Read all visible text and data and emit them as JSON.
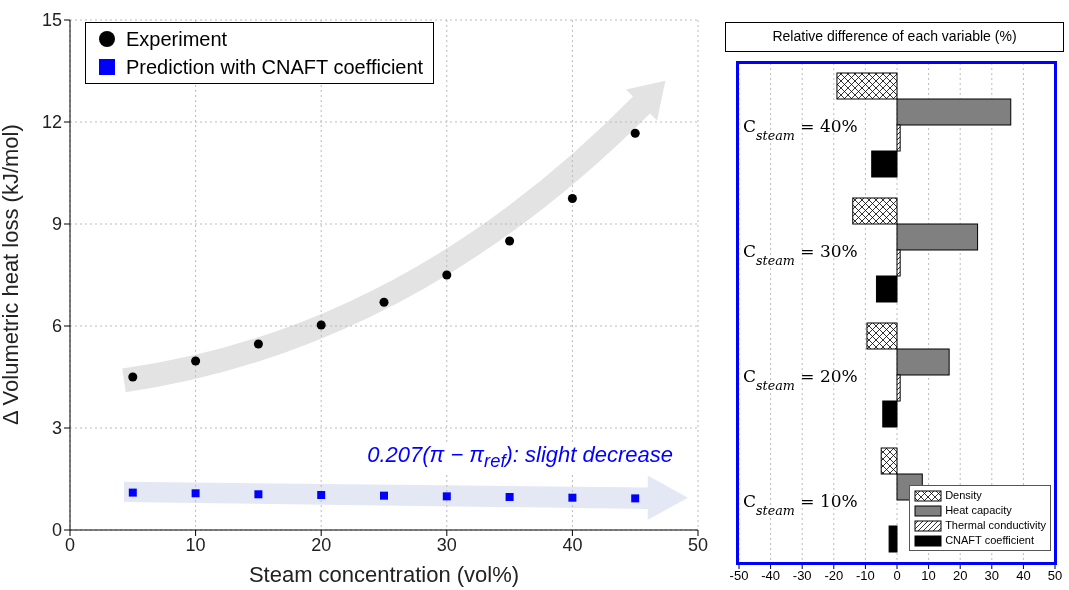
{
  "chart_data": [
    {
      "type": "scatter",
      "xlabel": "Steam concentration (vol%)",
      "ylabel": "Δ Volumetric heat loss (kJ/mol)",
      "x": [
        5,
        10,
        15,
        20,
        25,
        30,
        35,
        40,
        45
      ],
      "series": [
        {
          "name": "Experiment",
          "color": "#000000",
          "marker": "circle",
          "values": [
            4.5,
            4.97,
            5.47,
            6.03,
            6.7,
            7.5,
            8.5,
            9.75,
            11.67
          ]
        },
        {
          "name": "Prediction with CNAFT coefficient",
          "color": "#0000ff",
          "marker": "square",
          "values": [
            1.1,
            1.08,
            1.05,
            1.03,
            1.01,
            0.99,
            0.97,
            0.95,
            0.93
          ]
        }
      ],
      "xlim": [
        0,
        50
      ],
      "xticks": [
        0,
        10,
        20,
        30,
        40,
        50
      ],
      "ylim": [
        0,
        15
      ],
      "yticks": [
        0,
        3,
        6,
        9,
        12,
        15
      ],
      "annotations": [
        "0.207(π − π$_{ref}$): slight decrease"
      ],
      "grid": true,
      "legend": "top left"
    },
    {
      "type": "bar",
      "orientation": "horizontal",
      "title": "Relative difference of each variable (%)",
      "categories": [
        "C$_{steam}$ = 40%",
        "C$_{steam}$ = 30%",
        "C$_{steam}$ = 20%",
        "C$_{steam}$ = 10%"
      ],
      "series": [
        {
          "name": "Density",
          "color": "#ffffff",
          "values": [
            -19,
            -14,
            -9.5,
            -5
          ]
        },
        {
          "name": "Heat capacity",
          "color": "#808080",
          "values": [
            36,
            25.5,
            16.5,
            8
          ]
        },
        {
          "name": "Thermal conductivity",
          "color": "#ffffff",
          "values": [
            1,
            1,
            1,
            0
          ]
        },
        {
          "name": "CNAFT coefficient",
          "color": "#000000",
          "values": [
            -8,
            -6.5,
            -4.5,
            -2.5
          ]
        }
      ],
      "xlim": [
        -50,
        50
      ],
      "xticks": [
        -50,
        -40,
        -30,
        -20,
        -10,
        0,
        10,
        20,
        30,
        40,
        50
      ],
      "grid": "x",
      "legend": "bottom right"
    }
  ]
}
